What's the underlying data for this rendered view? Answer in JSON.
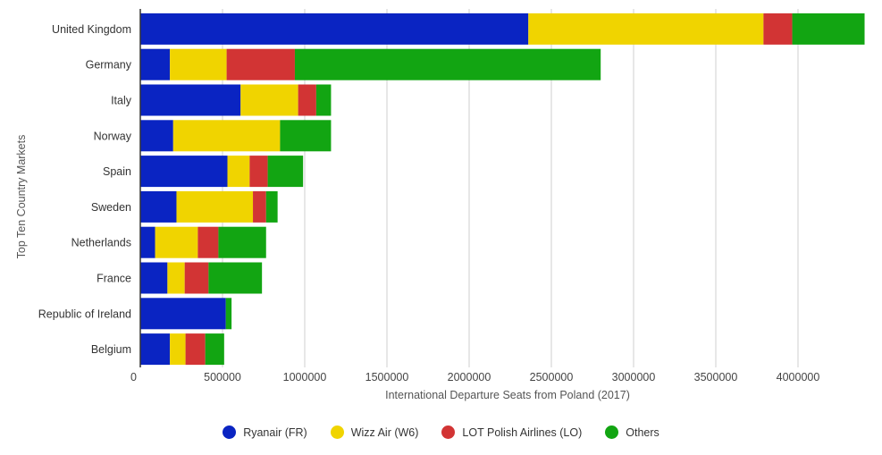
{
  "chart_data": {
    "type": "bar",
    "orientation": "horizontal",
    "stacked": true,
    "categories": [
      "United Kingdom",
      "Germany",
      "Italy",
      "Norway",
      "Spain",
      "Sweden",
      "Netherlands",
      "France",
      "Republic of Ireland",
      "Belgium"
    ],
    "series": [
      {
        "name": "Ryanair (FR)",
        "color": "#0a24c2",
        "values": [
          2360000,
          180000,
          610000,
          200000,
          530000,
          220000,
          90000,
          165000,
          520000,
          180000
        ]
      },
      {
        "name": "Wizz Air (W6)",
        "color": "#f0d400",
        "values": [
          1430000,
          345000,
          350000,
          650000,
          135000,
          465000,
          260000,
          105000,
          0,
          95000
        ]
      },
      {
        "name": "LOT Polish Airlines (LO)",
        "color": "#d23434",
        "values": [
          175000,
          415000,
          110000,
          0,
          110000,
          80000,
          125000,
          145000,
          0,
          120000
        ]
      },
      {
        "name": "Others",
        "color": "#12a512",
        "values": [
          440000,
          1860000,
          90000,
          310000,
          215000,
          70000,
          290000,
          325000,
          35000,
          115000
        ]
      }
    ],
    "xlabel": "International Departure Seats from Poland (2017)",
    "ylabel": "Top Ten Country Markets",
    "xlim": [
      0,
      4400000
    ],
    "xticks": [
      0,
      500000,
      1000000,
      1500000,
      2000000,
      2500000,
      3000000,
      3500000,
      4000000
    ],
    "xtick_labels": [
      "0",
      "500000",
      "1000000",
      "1500000",
      "2000000",
      "2500000",
      "3000000",
      "3500000",
      "4000000"
    ],
    "grid": true,
    "legend": "bottom"
  }
}
